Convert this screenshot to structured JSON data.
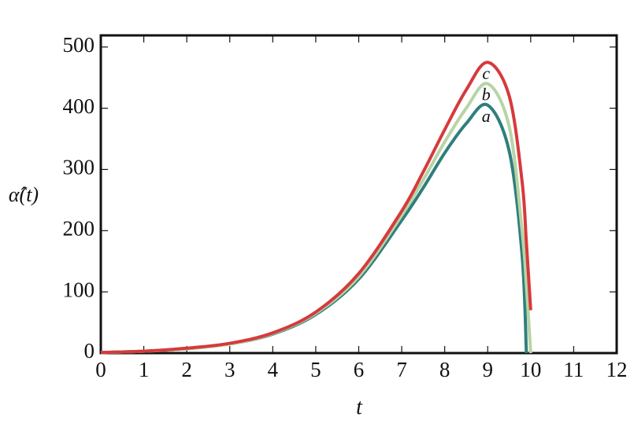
{
  "chart_data": {
    "type": "line",
    "x_label": "t",
    "y_label": "α̂(t)",
    "x": [
      0,
      1,
      2,
      3,
      4,
      5,
      6,
      7,
      7.5,
      8,
      8.5,
      9,
      9.5,
      9.8,
      9.9,
      10
    ],
    "series": [
      {
        "name": "a",
        "color": "#2f7f7c",
        "values": [
          1,
          3,
          7,
          15,
          31,
          63,
          121,
          217,
          270,
          327,
          375,
          405,
          330,
          160,
          0,
          null
        ]
      },
      {
        "name": "b",
        "color": "#b7d4a6",
        "values": [
          1,
          3,
          7,
          15,
          32,
          65,
          125,
          225,
          283,
          345,
          400,
          440,
          370,
          200,
          110,
          0
        ]
      },
      {
        "name": "c",
        "color": "#d63a3c",
        "values": [
          1,
          3,
          8,
          16,
          33,
          67,
          130,
          232,
          296,
          365,
          430,
          475,
          420,
          280,
          180,
          70
        ]
      }
    ],
    "xlim": [
      0,
      12
    ],
    "xticks": [
      0,
      1,
      2,
      3,
      4,
      5,
      6,
      7,
      8,
      9,
      10,
      11,
      12
    ],
    "ylim": [
      0,
      519
    ],
    "yticks": [
      0,
      100,
      200,
      300,
      400,
      500
    ]
  }
}
